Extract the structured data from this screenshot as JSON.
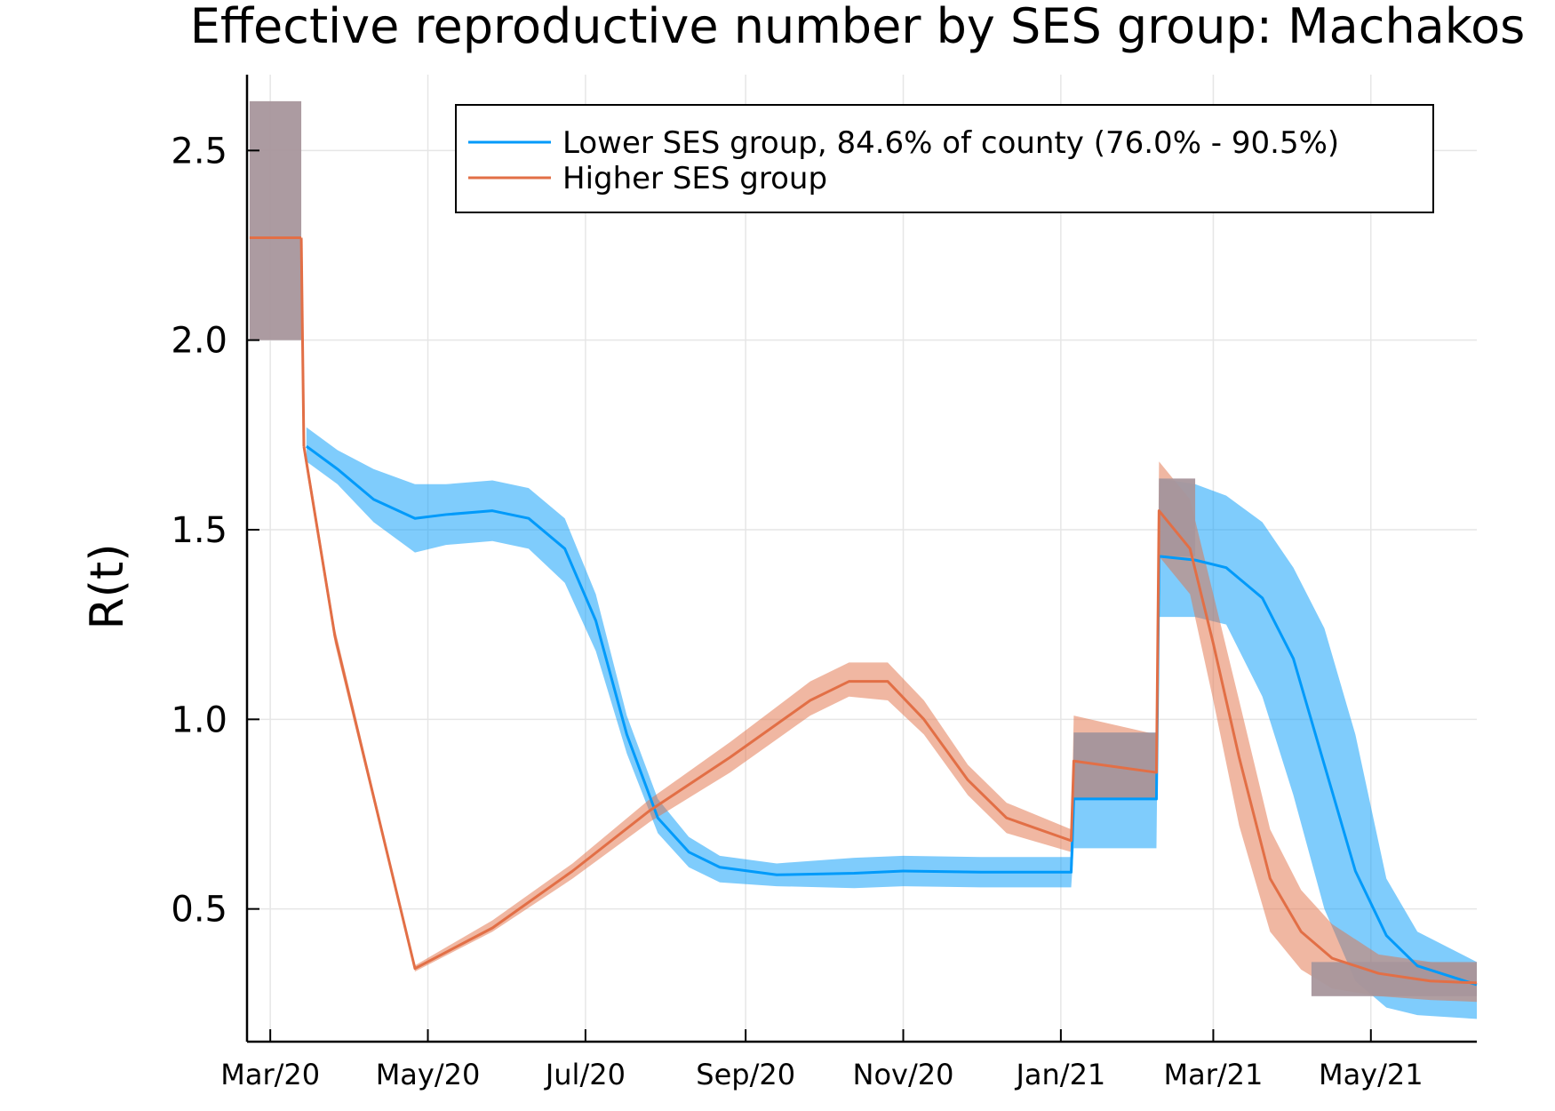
{
  "chart_data": {
    "type": "line",
    "title": "Effective reproductive number by SES group: Machakos",
    "xlabel": "",
    "ylabel": "R(t)",
    "x_tick_labels": [
      "Mar/20",
      "May/20",
      "Jul/20",
      "Sep/20",
      "Nov/20",
      "Jan/21",
      "Mar/21",
      "May/21"
    ],
    "y_ticks": [
      "0.5",
      "1.0",
      "1.5",
      "2.0",
      "2.5"
    ],
    "y_tick_values": [
      0.5,
      1.0,
      1.5,
      2.0,
      2.5
    ],
    "ylim": [
      0.15,
      2.7
    ],
    "xlim": [
      "2020-02-21",
      "2021-06-11"
    ],
    "grid": true,
    "legend_position": "top-right",
    "series": [
      {
        "name": "Lower SES group, 84.6% of county (76.0% - 90.5%)",
        "color": "#009AFA",
        "band_color": "#009AFA",
        "points": [
          [
            "2020-03-15",
            1.72,
            1.68,
            1.77
          ],
          [
            "2020-03-27",
            1.66,
            1.62,
            1.71
          ],
          [
            "2020-04-10",
            1.58,
            1.52,
            1.66
          ],
          [
            "2020-04-26",
            1.53,
            1.44,
            1.62
          ],
          [
            "2020-05-08",
            1.54,
            1.46,
            1.62
          ],
          [
            "2020-05-26",
            1.55,
            1.47,
            1.63
          ],
          [
            "2020-06-09",
            1.53,
            1.45,
            1.61
          ],
          [
            "2020-06-23",
            1.45,
            1.36,
            1.53
          ],
          [
            "2020-07-05",
            1.26,
            1.18,
            1.33
          ],
          [
            "2020-07-17",
            0.96,
            0.91,
            1.01
          ],
          [
            "2020-07-29",
            0.74,
            0.7,
            0.79
          ],
          [
            "2020-08-10",
            0.65,
            0.61,
            0.69
          ],
          [
            "2020-08-22",
            0.61,
            0.57,
            0.64
          ],
          [
            "2020-09-13",
            0.59,
            0.56,
            0.62
          ],
          [
            "2020-10-13",
            0.594,
            0.555,
            0.635
          ],
          [
            "2020-11-01",
            0.6,
            0.56,
            0.64
          ],
          [
            "2020-12-01",
            0.597,
            0.557,
            0.637
          ],
          [
            "2021-01-05",
            0.597,
            0.557,
            0.637
          ],
          [
            "2021-01-06",
            0.79,
            0.66,
            0.965
          ],
          [
            "2021-02-07",
            0.79,
            0.66,
            0.965
          ],
          [
            "2021-02-08",
            1.43,
            1.27,
            1.635
          ],
          [
            "2021-02-22",
            1.42,
            1.27,
            1.62
          ],
          [
            "2021-03-06",
            1.4,
            1.25,
            1.59
          ],
          [
            "2021-03-20",
            1.32,
            1.06,
            1.52
          ],
          [
            "2021-04-01",
            1.16,
            0.8,
            1.4
          ],
          [
            "2021-04-13",
            0.88,
            0.5,
            1.24
          ],
          [
            "2021-04-25",
            0.6,
            0.31,
            0.96
          ],
          [
            "2021-05-07",
            0.43,
            0.24,
            0.58
          ],
          [
            "2021-05-19",
            0.35,
            0.22,
            0.44
          ],
          [
            "2021-06-11",
            0.3,
            0.21,
            0.36
          ]
        ]
      },
      {
        "name": "Higher SES group",
        "color": "#E26F46",
        "band_color": "#E26F46",
        "points": [
          [
            "2020-03-14",
            1.72,
            1.7,
            1.74
          ],
          [
            "2020-03-26",
            1.22,
            1.2,
            1.24
          ],
          [
            "2020-04-26",
            0.343,
            0.335,
            0.351
          ],
          [
            "2020-05-26",
            0.45,
            0.44,
            0.47
          ],
          [
            "2020-06-26",
            0.6,
            0.58,
            0.62
          ],
          [
            "2020-07-26",
            0.76,
            0.73,
            0.79
          ],
          [
            "2020-08-26",
            0.9,
            0.86,
            0.94
          ],
          [
            "2020-09-26",
            1.05,
            1.01,
            1.1
          ],
          [
            "2020-10-11",
            1.1,
            1.06,
            1.15
          ],
          [
            "2020-10-26",
            1.1,
            1.05,
            1.15
          ],
          [
            "2020-11-09",
            1.0,
            0.96,
            1.05
          ],
          [
            "2020-11-26",
            0.84,
            0.8,
            0.88
          ],
          [
            "2020-12-11",
            0.74,
            0.7,
            0.78
          ],
          [
            "2021-01-05",
            0.68,
            0.65,
            0.71
          ],
          [
            "2021-01-06",
            0.89,
            0.79,
            1.01
          ],
          [
            "2021-02-07",
            0.86,
            0.79,
            0.96
          ],
          [
            "2021-02-08",
            1.55,
            1.43,
            1.68
          ],
          [
            "2021-02-20",
            1.45,
            1.33,
            1.58
          ],
          [
            "2021-03-01",
            1.2,
            1.05,
            1.33
          ],
          [
            "2021-03-11",
            0.9,
            0.72,
            1.05
          ],
          [
            "2021-03-23",
            0.58,
            0.44,
            0.71
          ],
          [
            "2021-04-04",
            0.44,
            0.34,
            0.55
          ],
          [
            "2021-04-16",
            0.37,
            0.29,
            0.46
          ],
          [
            "2021-05-04",
            0.33,
            0.27,
            0.38
          ],
          [
            "2021-05-24",
            0.31,
            0.26,
            0.36
          ],
          [
            "2021-06-11",
            0.305,
            0.255,
            0.355
          ]
        ]
      }
    ],
    "shared_bands": [
      {
        "x": [
          "2020-02-22",
          "2020-03-13"
        ],
        "value": 2.27,
        "lower": 2.0,
        "upper": 2.63,
        "color": "#A8969C"
      },
      {
        "x": [
          "2021-01-06",
          "2021-02-07"
        ],
        "lower": 0.79,
        "upper": 0.965,
        "color": "#A8969C"
      },
      {
        "x": [
          "2021-02-08",
          "2021-02-22"
        ],
        "lower": 1.43,
        "upper": 1.635,
        "color": "#A8969C"
      },
      {
        "x": [
          "2021-04-08",
          "2021-06-11"
        ],
        "lower": 0.27,
        "upper": 0.36,
        "color": "#A8969C"
      }
    ]
  }
}
